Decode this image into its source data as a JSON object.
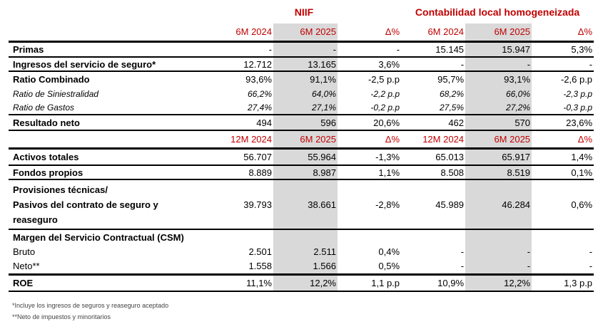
{
  "groups": {
    "niif": "NIIF",
    "local": "Contabilidad local homogeneizada"
  },
  "colors": {
    "accent": "#c00000",
    "shade": "#d9d9d9"
  },
  "header1": [
    "6M 2024",
    "6M 2025",
    "Δ%",
    "6M 2024",
    "6M 2025",
    "Δ%"
  ],
  "header2": [
    "12M 2024",
    "6M 2025",
    "Δ%",
    "12M 2024",
    "6M 2025",
    "Δ%"
  ],
  "rows1": [
    {
      "label": "Primas",
      "style": "bold",
      "values": [
        "-",
        "-",
        "-",
        "15.145",
        "15.947",
        "5,3%"
      ]
    },
    {
      "label": "Ingresos del servicio de seguro*",
      "style": "bold",
      "values": [
        "12.712",
        "13.165",
        "3,6%",
        "-",
        "-",
        "-"
      ]
    },
    {
      "label": "Ratio Combinado",
      "style": "bold",
      "values": [
        "93,6%",
        "91,1%",
        "-2,5 p.p",
        "95,7%",
        "93,1%",
        "-2,6 p.p"
      ]
    },
    {
      "label": "Ratio de Siniestralidad",
      "style": "ital",
      "values": [
        "66,2%",
        "64,0%",
        "-2,2 p.p",
        "68,2%",
        "66,0%",
        "-2,3 p.p"
      ]
    },
    {
      "label": "Ratio de Gastos",
      "style": "ital",
      "values": [
        "27,4%",
        "27,1%",
        "-0,2 p.p",
        "27,5%",
        "27,2%",
        "-0,3 p.p"
      ]
    },
    {
      "label": "Resultado neto",
      "style": "bold",
      "values": [
        "494",
        "596",
        "20,6%",
        "462",
        "570",
        "23,6%"
      ]
    }
  ],
  "rows2": [
    {
      "label": "Activos totales",
      "style": "bold",
      "values": [
        "56.707",
        "55.964",
        "-1,3%",
        "65.013",
        "65.917",
        "1,4%"
      ]
    },
    {
      "label": "Fondos propios",
      "style": "bold",
      "values": [
        "8.889",
        "8.987",
        "1,1%",
        "8.508",
        "8.519",
        "0,1%"
      ]
    },
    {
      "label": "Provisiones técnicas/\nPasivos del contrato de seguro y\nreaseguro",
      "style": "bold",
      "values": [
        "39.793",
        "38.661",
        "-2,8%",
        "45.989",
        "46.284",
        "0,6%"
      ]
    },
    {
      "label": "Margen del Servicio Contractual (CSM)",
      "style": "bold",
      "values": [
        "",
        "",
        "",
        "",
        "",
        ""
      ]
    },
    {
      "label": "Bruto",
      "style": "plain",
      "values": [
        "2.501",
        "2.511",
        "0,4%",
        "-",
        "-",
        "-"
      ]
    },
    {
      "label": "Neto**",
      "style": "plain",
      "values": [
        "1.558",
        "1.566",
        "0,5%",
        "-",
        "-",
        "-"
      ]
    },
    {
      "label": "ROE",
      "style": "bold",
      "values": [
        "11,1%",
        "12,2%",
        "1,1 p.p",
        "10,9%",
        "12,2%",
        "1,3 p.p"
      ]
    }
  ],
  "footnotes": [
    "*Incluye los ingresos de seguros y reaseguro aceptado",
    "**Neto de impuestos y minoritarios"
  ]
}
